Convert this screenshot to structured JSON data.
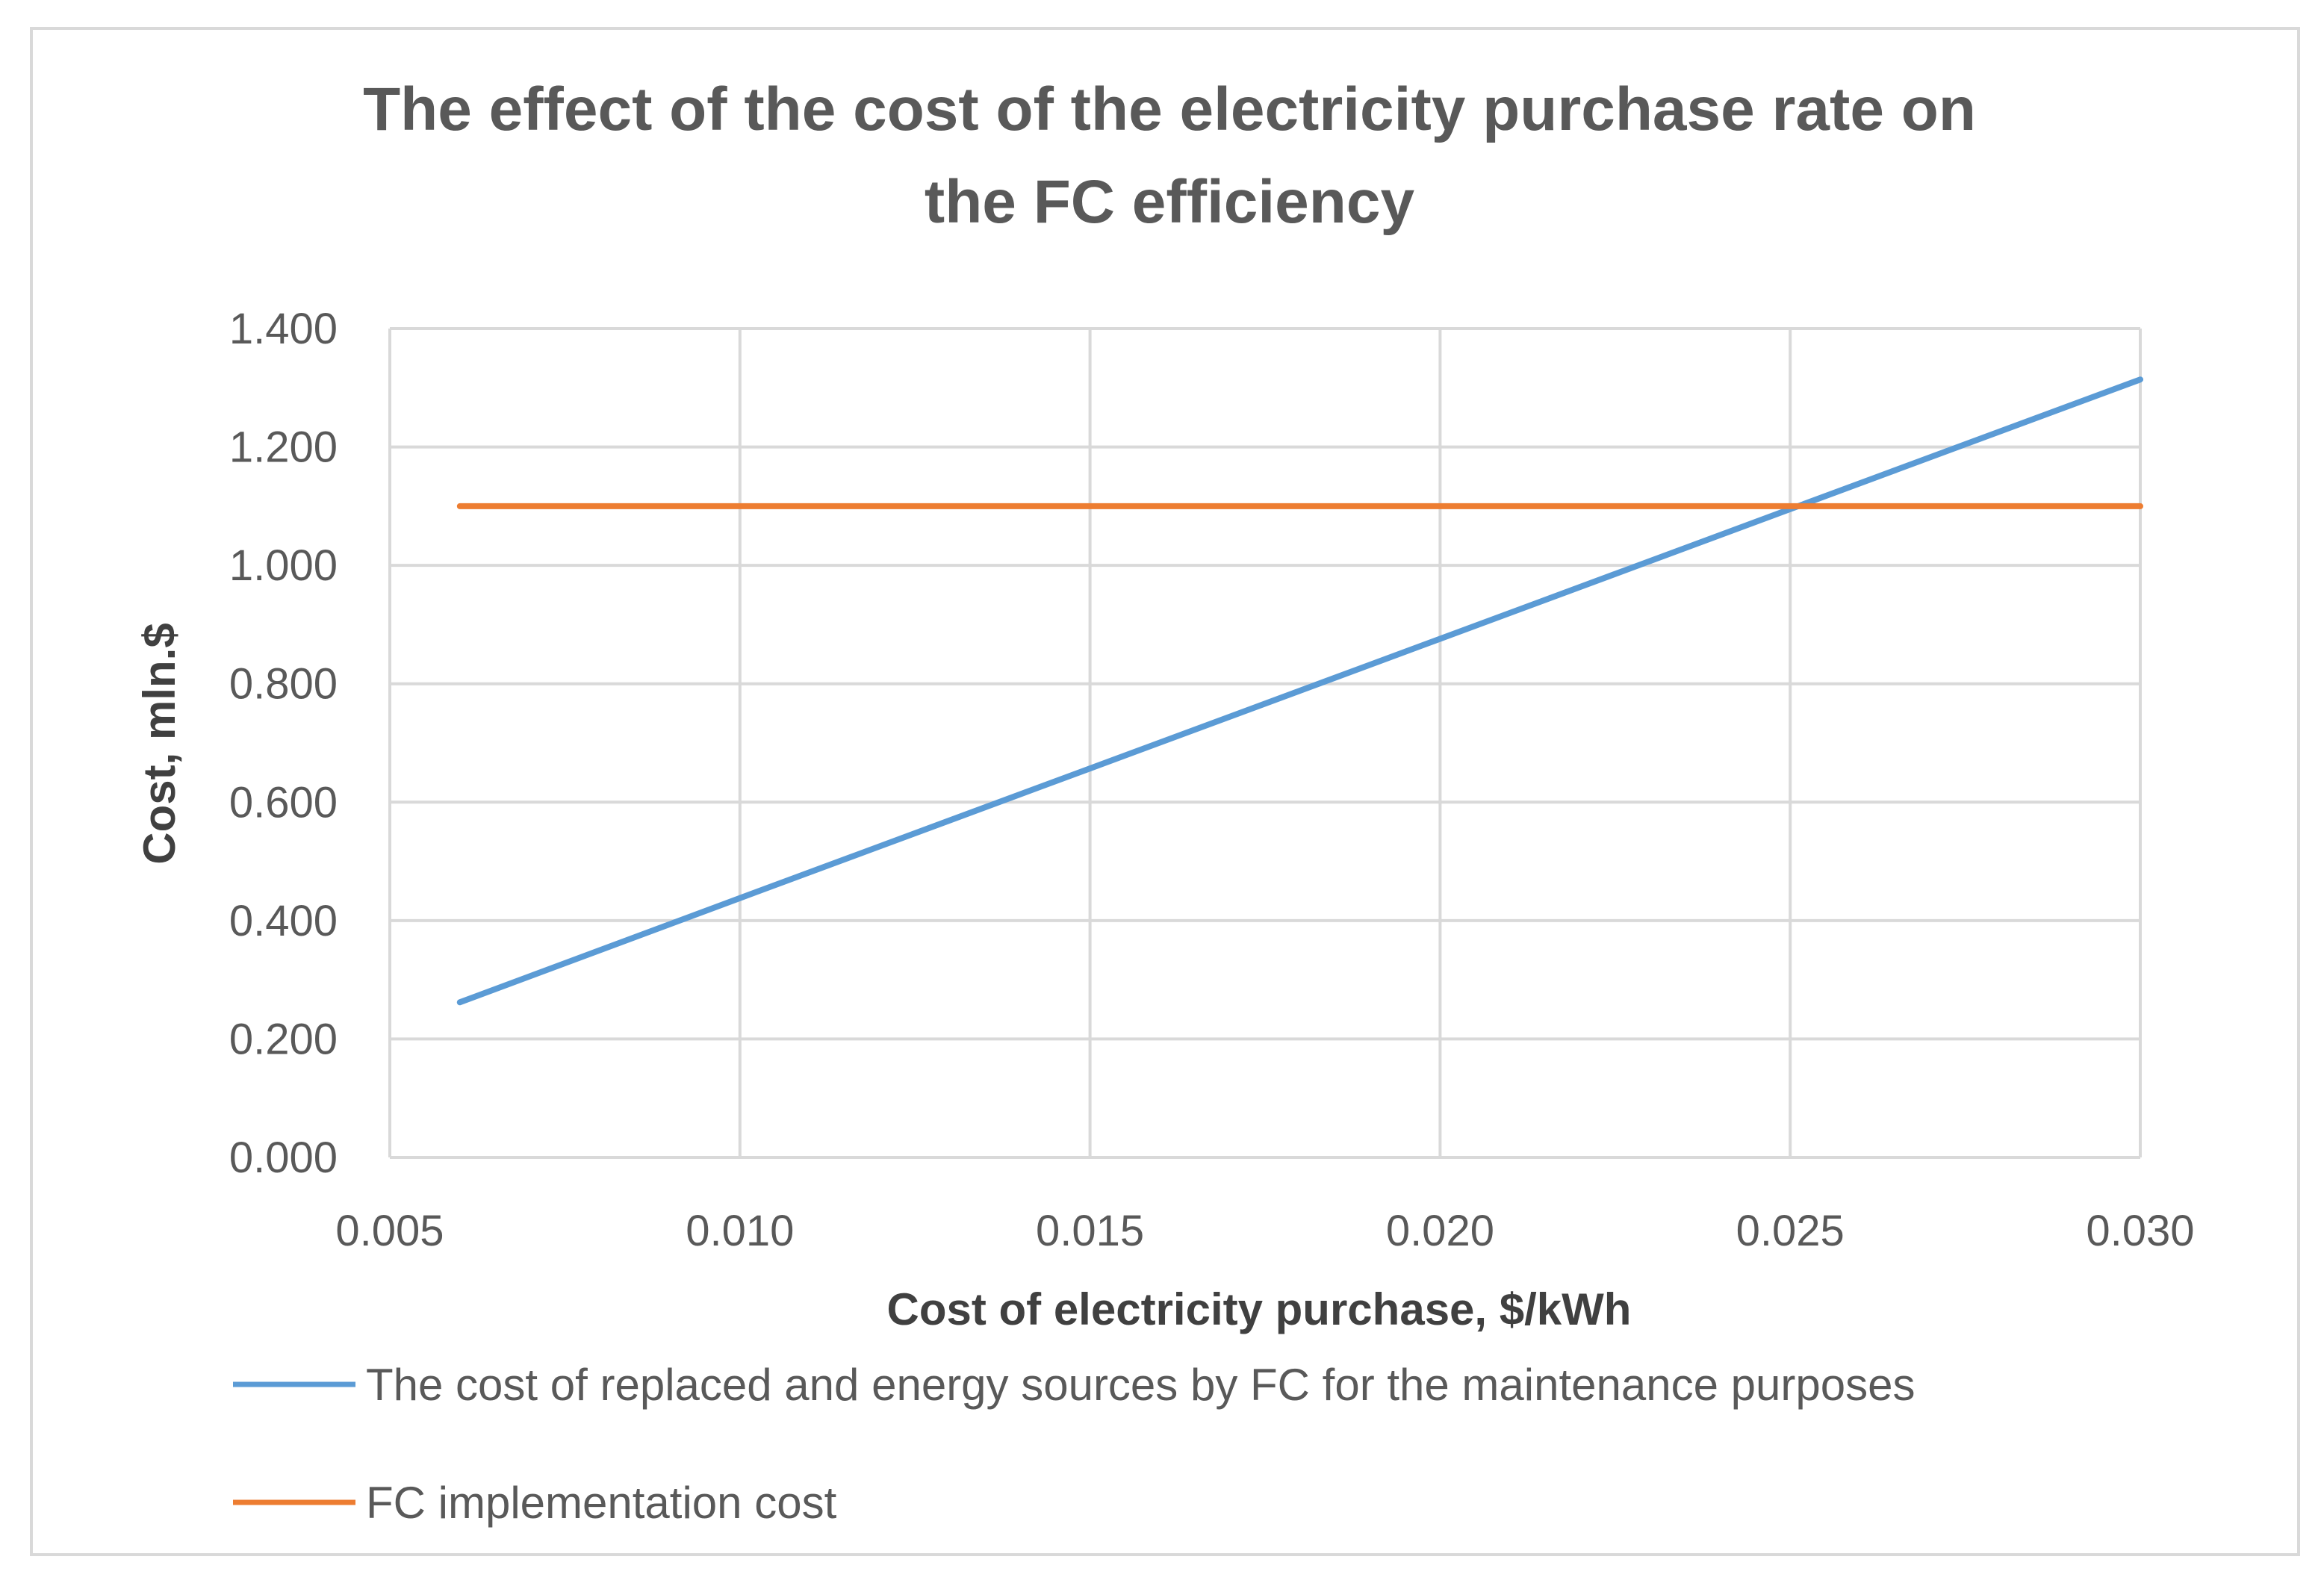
{
  "chart_data": {
    "type": "line",
    "title_lines": [
      "The effect of the cost of the electricity purchase rate on",
      "the FC efficiency"
    ],
    "xlabel": "Cost of electricity purchase, $/kWh",
    "ylabel": "Cost, mln.$",
    "xlim": [
      0.005,
      0.03
    ],
    "ylim": [
      0,
      1.4
    ],
    "x_ticks": [
      "0.005",
      "0.010",
      "0.015",
      "0.020",
      "0.025",
      "0.030"
    ],
    "y_ticks": [
      "0.000",
      "0.200",
      "0.400",
      "0.600",
      "0.800",
      "1.000",
      "1.200",
      "1.400"
    ],
    "grid": true,
    "legend_position": "bottom",
    "series": [
      {
        "name": "The cost of replaced and energy sources by FC for the maintenance purposes",
        "color": "#5b9bd5",
        "x": [
          0.006,
          0.01,
          0.015,
          0.02,
          0.025,
          0.03
        ],
        "y": [
          0.262,
          0.438,
          0.657,
          0.876,
          1.095,
          1.314
        ]
      },
      {
        "name": "FC implementation cost",
        "color": "#ed7d31",
        "x": [
          0.006,
          0.03
        ],
        "y": [
          1.1,
          1.1
        ]
      }
    ]
  }
}
